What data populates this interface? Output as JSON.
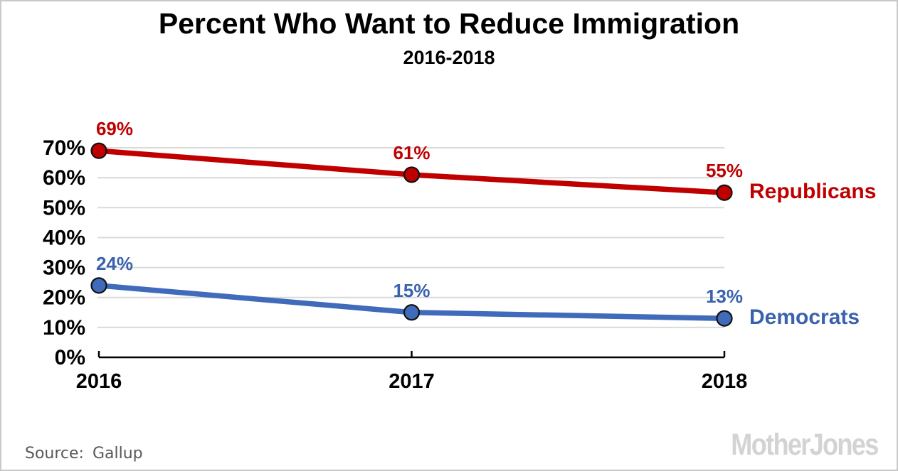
{
  "chart_data": {
    "type": "line",
    "title": "Percent Who Want to Reduce Immigration",
    "subtitle": "2016-2018",
    "x_labels": [
      "2016",
      "2017",
      "2018"
    ],
    "y_ticks": [
      "0%",
      "10%",
      "20%",
      "30%",
      "40%",
      "50%",
      "60%",
      "70%"
    ],
    "ylim": [
      0,
      70
    ],
    "grid": "horizontal",
    "gridline_color": "#D9D9D9",
    "axis_color": "#000000",
    "tick_label_color": "#000000",
    "series": [
      {
        "name": "Republicans",
        "values": [
          69,
          61,
          55
        ],
        "point_labels": [
          "69%",
          "61%",
          "55%"
        ],
        "line_color": "#C00000",
        "label_color": "#C00000"
      },
      {
        "name": "Democrats",
        "values": [
          24,
          15,
          13
        ],
        "point_labels": [
          "24%",
          "15%",
          "13%"
        ],
        "line_color": "#3F6BBA",
        "label_color": "#3A62AE"
      }
    ],
    "legend_position": "right-of-last-point"
  },
  "footer": {
    "source_label": "Source:",
    "source_value": "Gallup",
    "logo_text": "MotherJones"
  }
}
